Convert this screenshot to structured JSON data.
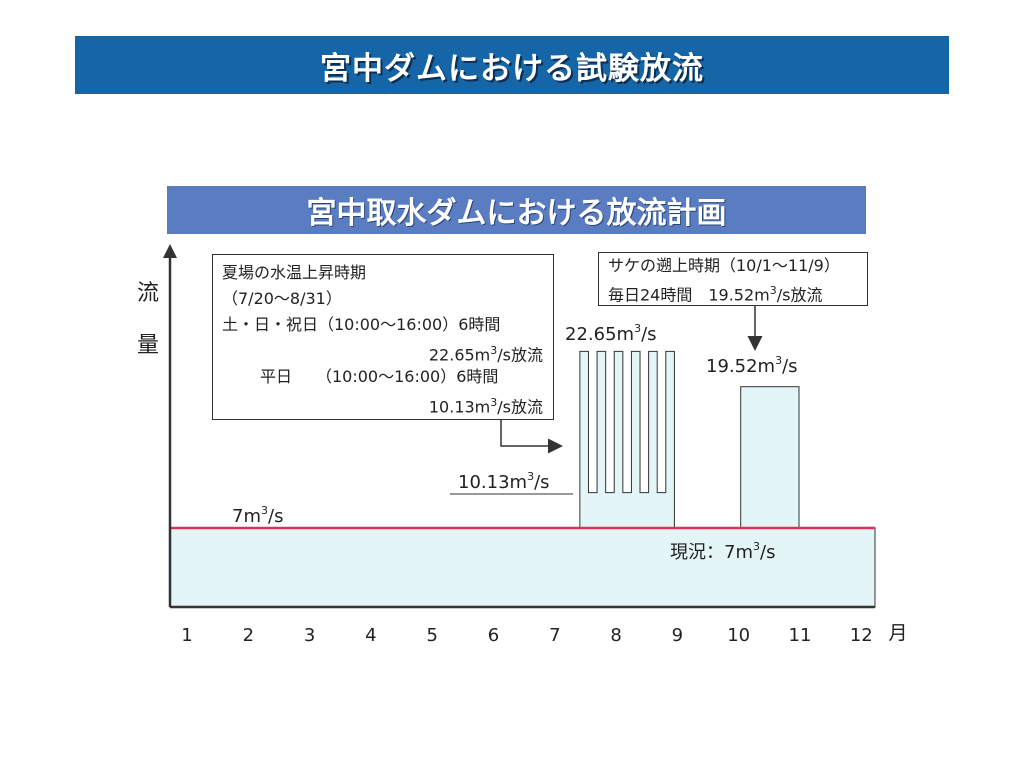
{
  "slide_title": "宮中ダムにおける試験放流",
  "chart_data": {
    "type": "area",
    "title": "宮中取水ダムにおける放流計画",
    "xlabel": "月",
    "ylabel": "流量",
    "categories": [
      "1",
      "2",
      "3",
      "4",
      "5",
      "6",
      "7",
      "8",
      "9",
      "10",
      "11",
      "12"
    ],
    "unit_label": "m³/s",
    "baseline": {
      "value": 7,
      "label": "7m",
      "label_unit": "3",
      "label_suffix": "/s"
    },
    "current_label": {
      "prefix": "現況：7m",
      "sup": "3",
      "suffix": "/s"
    },
    "series": [
      {
        "name": "現況",
        "x_range": [
          1,
          12
        ],
        "value": 7
      },
      {
        "name": "夏場の水温上昇時期",
        "x_range": [
          7.67,
          9.0
        ],
        "weekend_value": 22.65,
        "weekday_value": 10.13
      },
      {
        "name": "サケの遡上時期",
        "x_range": [
          10.0,
          11.0
        ],
        "value": 19.52
      }
    ],
    "bar_labels": {
      "summer_high": {
        "text": "22.65m",
        "sup": "3",
        "suffix": "/s"
      },
      "summer_low": {
        "text": "10.13m",
        "sup": "3",
        "suffix": "/s"
      },
      "salmon": {
        "text": "19.52m",
        "sup": "3",
        "suffix": "/s"
      }
    },
    "ylim": [
      0,
      30
    ]
  },
  "notes": {
    "summer": {
      "line1": "夏場の水温上昇時期",
      "line2": "（7/20〜8/31）",
      "line3": "土・日・祝日（10:00〜16:00）6時間",
      "line4_a": "22.65m",
      "line4_sup": "3",
      "line4_b": "/s放流",
      "line5": "平日　　（10:00〜16:00）6時間",
      "line6_a": "10.13m",
      "line6_sup": "3",
      "line6_b": "/s放流"
    },
    "salmon": {
      "line1": "サケの遡上時期（10/1〜11/9）",
      "line2_a": "毎日24時間　19.52m",
      "line2_sup": "3",
      "line2_b": "/s放流"
    }
  },
  "colors": {
    "title_bar": "#1565a7",
    "chart_title_bar": "#5a7dc2",
    "area_fill": "#e3f5f6",
    "baseline": "#e0305a",
    "axis": "#333333"
  }
}
